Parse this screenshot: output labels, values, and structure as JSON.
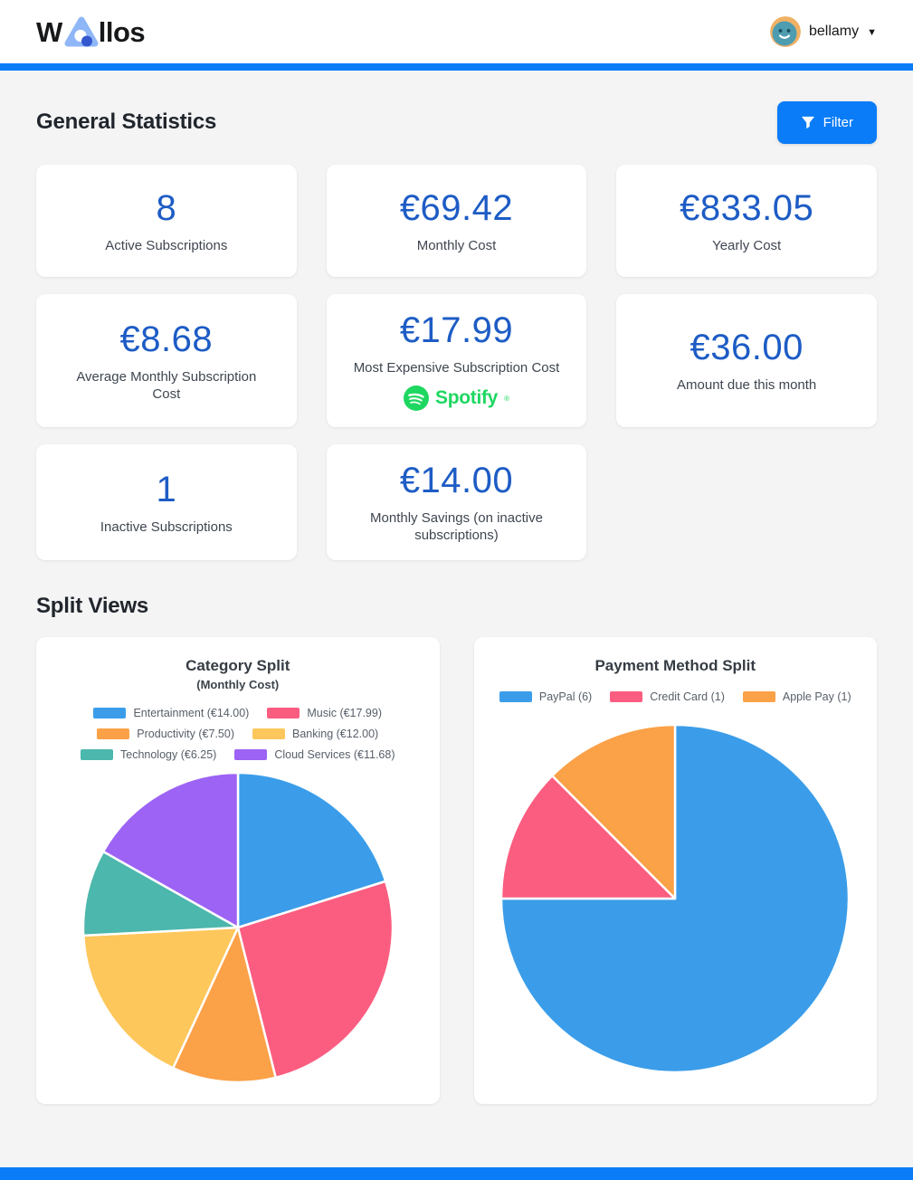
{
  "header": {
    "logo_prefix": "W",
    "logo_suffix": "llos",
    "username": "bellamy",
    "caret": "▼"
  },
  "sections": {
    "general_statistics": "General Statistics",
    "split_views": "Split Views"
  },
  "toolbar": {
    "filter_label": "Filter"
  },
  "stats": [
    {
      "value": "8",
      "label": "Active Subscriptions"
    },
    {
      "value": "€69.42",
      "label": "Monthly Cost"
    },
    {
      "value": "€833.05",
      "label": "Yearly Cost"
    },
    {
      "value": "€8.68",
      "label": "Average Monthly Subscription Cost"
    },
    {
      "value": "€17.99",
      "label": "Most Expensive Subscription Cost",
      "brand": "Spotify",
      "brand_mark": "®"
    },
    {
      "value": "€36.00",
      "label": "Amount due this month"
    },
    {
      "value": "1",
      "label": "Inactive Subscriptions"
    },
    {
      "value": "€14.00",
      "label": "Monthly Savings (on inactive subscriptions)"
    }
  ],
  "chart_data": [
    {
      "type": "pie",
      "title": "Category Split",
      "subtitle": "(Monthly Cost)",
      "legend_position": "top",
      "start_angle_deg": -90,
      "direction": "clockwise",
      "categories": [
        "Entertainment",
        "Music",
        "Productivity",
        "Banking",
        "Technology",
        "Cloud Services"
      ],
      "values": [
        14.0,
        17.99,
        7.5,
        12.0,
        6.25,
        11.68
      ],
      "legend_labels": [
        "Entertainment (€14.00)",
        "Music (€17.99)",
        "Productivity (€7.50)",
        "Banking (€12.00)",
        "Technology (€6.25)",
        "Cloud Services (€11.68)"
      ],
      "colors": [
        "#3b9de9",
        "#fb5d80",
        "#fba148",
        "#fdc75b",
        "#4cb7ac",
        "#9c63f4"
      ]
    },
    {
      "type": "pie",
      "title": "Payment Method Split",
      "legend_position": "top",
      "start_angle_deg": -90,
      "direction": "clockwise",
      "categories": [
        "PayPal",
        "Credit Card",
        "Apple Pay"
      ],
      "values": [
        6,
        1,
        1
      ],
      "legend_labels": [
        "PayPal (6)",
        "Credit Card (1)",
        "Apple Pay (1)"
      ],
      "colors": [
        "#3b9de9",
        "#fb5d80",
        "#fba148"
      ]
    }
  ],
  "colors": {
    "accent": "#0a7cf8",
    "stat_number": "#1d5cc5",
    "spotify_green": "#1ed760",
    "logo_light_blue": "#8fb6f7",
    "logo_dark_blue": "#3358ce",
    "avatar_bg": "#f0b165",
    "avatar_face": "#4e9cb0",
    "page_bg": "#f4f4f5"
  }
}
